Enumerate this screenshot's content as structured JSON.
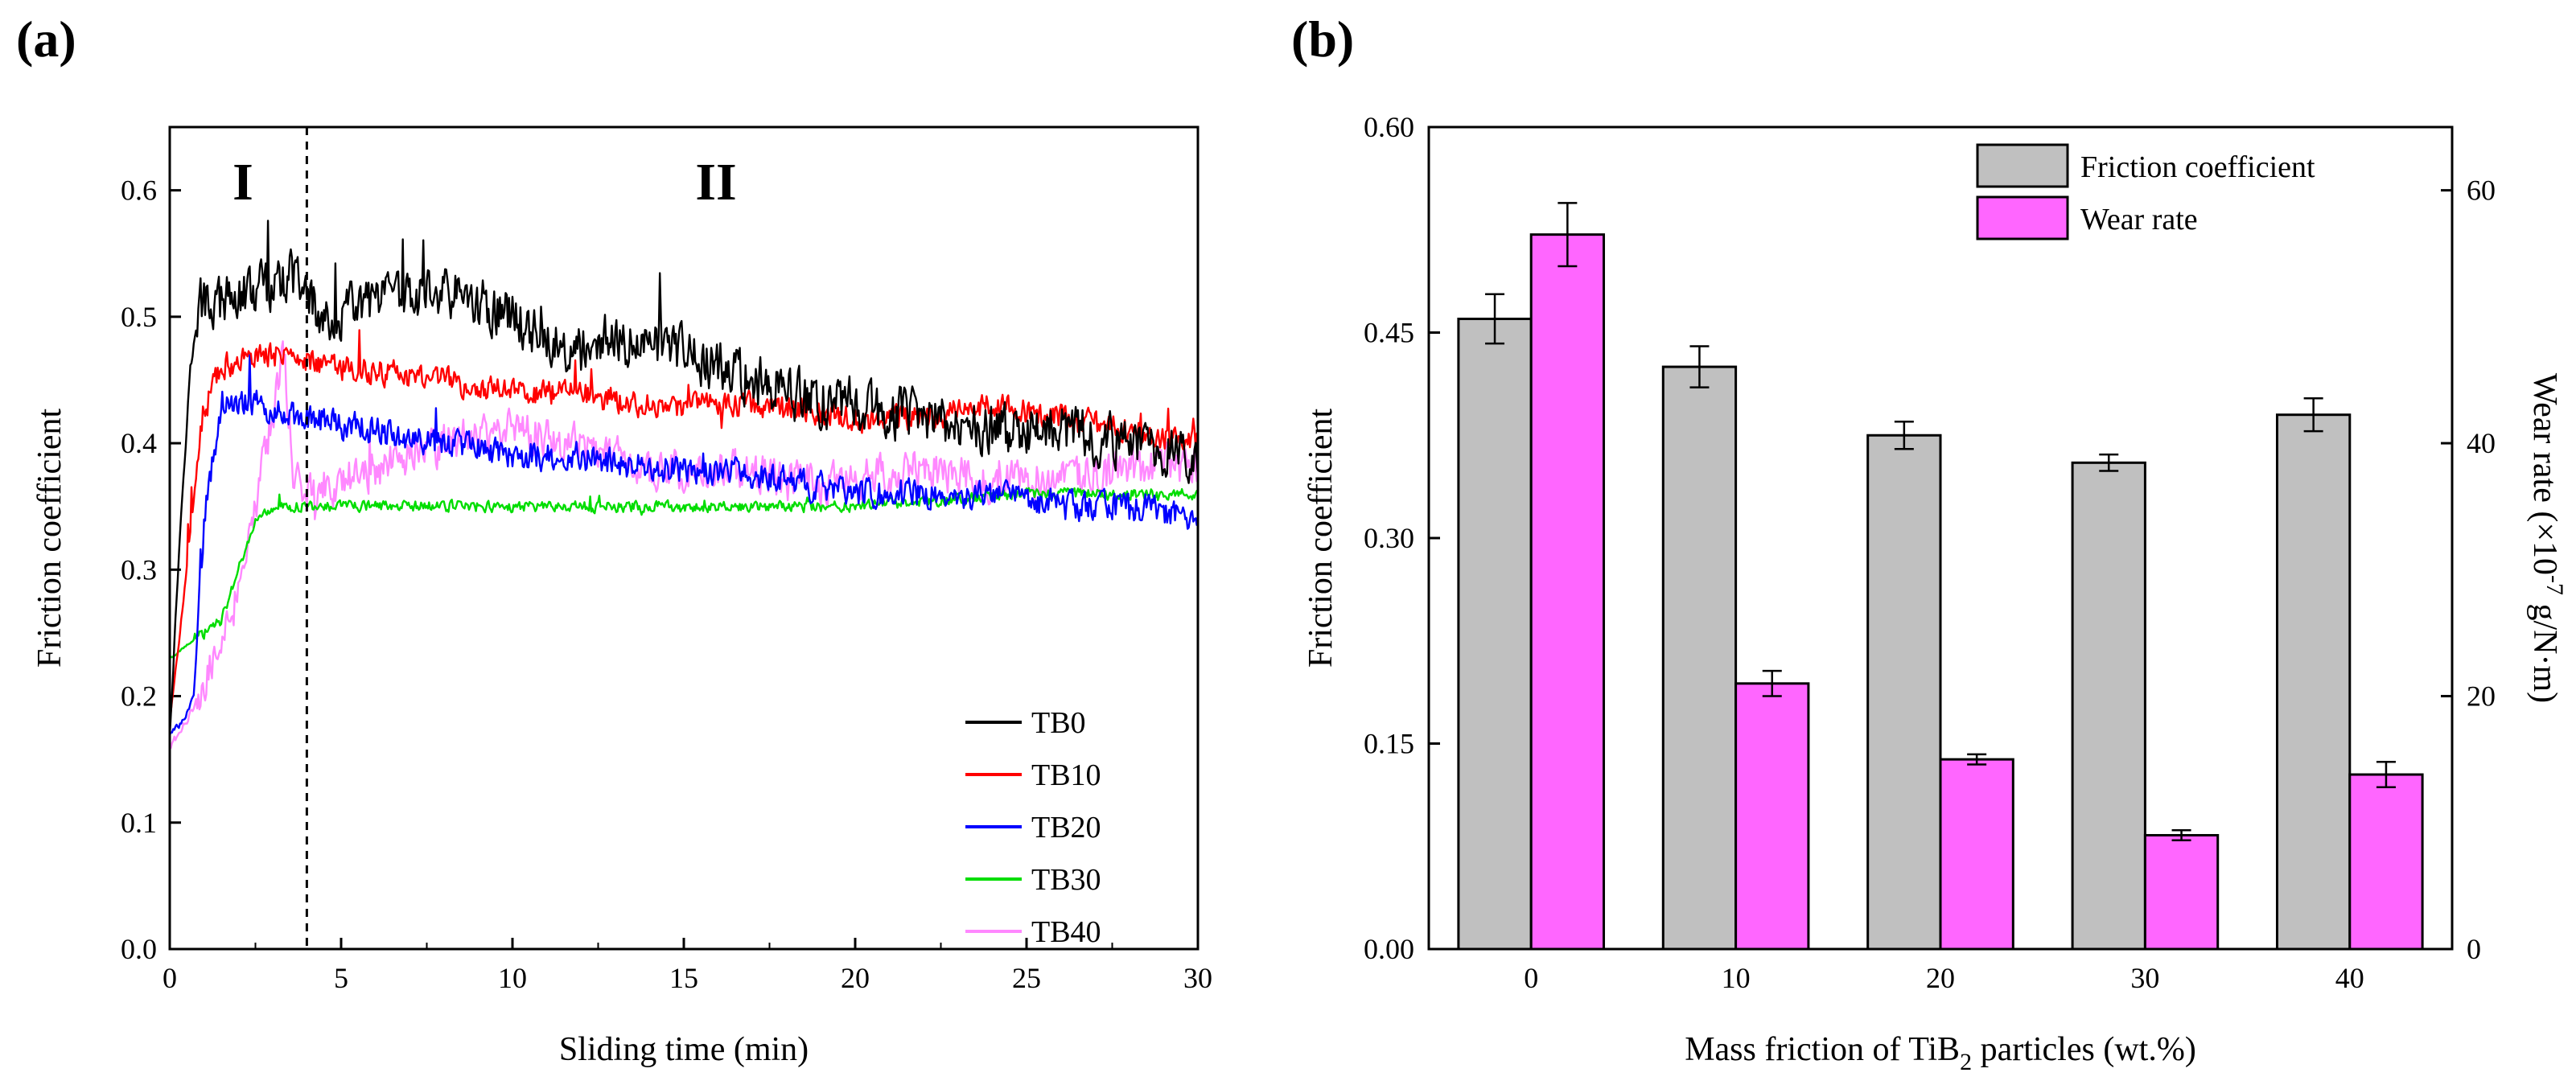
{
  "chart_data": [
    {
      "panel_label": "(a)",
      "type": "line",
      "title": "",
      "xlabel": "Sliding time (min)",
      "ylabel": "Friction coefficient",
      "xlim": [
        0,
        30
      ],
      "ylim": [
        0,
        0.65
      ],
      "xticks": [
        0,
        5,
        10,
        15,
        20,
        25,
        30
      ],
      "yticks": [
        0.0,
        0.1,
        0.2,
        0.3,
        0.4,
        0.5,
        0.6
      ],
      "ytick_labels": [
        "0.0",
        "0.1",
        "0.2",
        "0.3",
        "0.4",
        "0.5",
        "0.6"
      ],
      "regions": {
        "I": "I",
        "II": "II",
        "divider_x": 4
      },
      "legend_position": "bottom-right",
      "series": [
        {
          "name": "TB0",
          "color": "#000000",
          "noise": 0.028,
          "x": [
            0,
            0.3,
            0.6,
            0.9,
            1.5,
            2.5,
            3.5,
            4.5,
            6,
            8,
            10,
            12,
            14,
            16,
            18,
            20,
            22,
            24,
            26,
            28,
            30
          ],
          "y": [
            0.17,
            0.33,
            0.46,
            0.51,
            0.51,
            0.52,
            0.53,
            0.5,
            0.51,
            0.52,
            0.5,
            0.47,
            0.48,
            0.46,
            0.44,
            0.43,
            0.42,
            0.41,
            0.41,
            0.4,
            0.39
          ]
        },
        {
          "name": "TB10",
          "color": "#ff0000",
          "noise": 0.014,
          "x": [
            0,
            0.3,
            0.6,
            1,
            1.5,
            2.5,
            3.5,
            5,
            8,
            10,
            12,
            14,
            16,
            18,
            20,
            22,
            24,
            26,
            28,
            30
          ],
          "y": [
            0.18,
            0.25,
            0.33,
            0.43,
            0.46,
            0.47,
            0.47,
            0.46,
            0.45,
            0.44,
            0.44,
            0.43,
            0.43,
            0.43,
            0.42,
            0.42,
            0.43,
            0.42,
            0.41,
            0.4
          ]
        },
        {
          "name": "TB20",
          "color": "#0000ff",
          "noise": 0.016,
          "x": [
            0,
            0.4,
            0.7,
            1,
            1.5,
            2.5,
            4,
            6,
            8,
            10,
            12,
            14,
            16,
            18,
            20,
            22,
            24,
            26,
            28,
            30
          ],
          "y": [
            0.17,
            0.18,
            0.2,
            0.34,
            0.43,
            0.43,
            0.42,
            0.41,
            0.4,
            0.39,
            0.39,
            0.38,
            0.38,
            0.37,
            0.36,
            0.36,
            0.36,
            0.35,
            0.35,
            0.34
          ]
        },
        {
          "name": "TB30",
          "color": "#00dd00",
          "noise": 0.006,
          "x": [
            0,
            0.5,
            1,
            1.5,
            2,
            2.5,
            3,
            4,
            6,
            10,
            15,
            20,
            25,
            28,
            30
          ],
          "y": [
            0.23,
            0.24,
            0.25,
            0.26,
            0.3,
            0.34,
            0.35,
            0.35,
            0.35,
            0.35,
            0.35,
            0.35,
            0.36,
            0.36,
            0.36
          ]
        },
        {
          "name": "TB40",
          "color": "#ff88ff",
          "noise": 0.022,
          "x": [
            0,
            0.5,
            1,
            1.5,
            2,
            2.5,
            3,
            3.3,
            3.6,
            4,
            6,
            8,
            10,
            12,
            14,
            16,
            18,
            20,
            22,
            24,
            26,
            28,
            30
          ],
          "y": [
            0.16,
            0.18,
            0.21,
            0.25,
            0.28,
            0.35,
            0.42,
            0.48,
            0.38,
            0.36,
            0.38,
            0.4,
            0.41,
            0.4,
            0.38,
            0.38,
            0.37,
            0.37,
            0.38,
            0.37,
            0.37,
            0.38,
            0.38
          ]
        }
      ]
    },
    {
      "panel_label": "(b)",
      "type": "bar",
      "title": "",
      "xlabel": "Mass friction of TiB₂ particles (wt.%)",
      "xlabel_main": "Mass friction of TiB",
      "xlabel_sub": "2",
      "xlabel_end": " particles (wt.%)",
      "ylabel": "Friction coefficient",
      "ylabel_right": "Wear rate (×10⁻⁷ g/N·m)",
      "ylabel_right_pre": "Wear rate (×10",
      "ylabel_right_exp": "-7",
      "ylabel_right_post": " g/N·m)",
      "categories": [
        "0",
        "10",
        "20",
        "30",
        "40"
      ],
      "ylim": [
        0,
        0.6
      ],
      "yticks": [
        "0.00",
        "0.15",
        "0.30",
        "0.45",
        "0.60"
      ],
      "ylim_right": [
        0,
        65
      ],
      "yticks_right": [
        "0",
        "20",
        "40",
        "60"
      ],
      "legend_position": "top-right",
      "series": [
        {
          "name": "Friction coefficient",
          "axis": "left",
          "color": "#c0c0c0",
          "values": [
            0.46,
            0.425,
            0.375,
            0.355,
            0.39
          ],
          "errors": [
            0.018,
            0.015,
            0.01,
            0.006,
            0.012
          ]
        },
        {
          "name": "Wear rate",
          "axis": "right",
          "color": "#ff66ff",
          "values": [
            56.5,
            21,
            15,
            9,
            13.8
          ],
          "errors": [
            2.5,
            1,
            0.4,
            0.4,
            1
          ]
        }
      ]
    }
  ]
}
